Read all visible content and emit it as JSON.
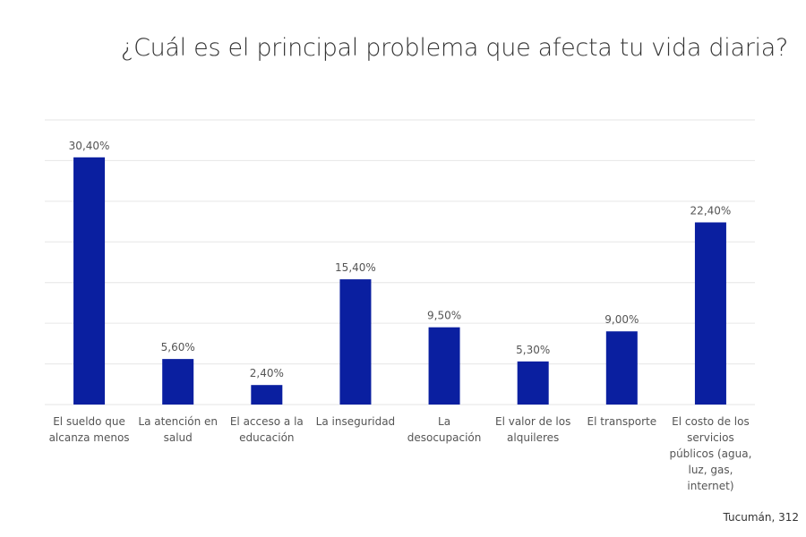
{
  "chart_data": {
    "type": "bar",
    "title": "¿Cuál es el principal problema que afecta tu vida diaria?",
    "categories": [
      "El sueldo que alcanza menos",
      "La atención en salud",
      "El acceso a la educación",
      "La inseguridad",
      "La desocupación",
      "El valor de los alquileres",
      "El transporte",
      "El costo de los servicios públicos (agua, luz, gas, internet)"
    ],
    "values": [
      30.4,
      5.6,
      2.4,
      15.4,
      9.5,
      5.3,
      9.0,
      22.4
    ],
    "data_labels": [
      "30,40%",
      "5,60%",
      "2,40%",
      "15,40%",
      "9,50%",
      "5,30%",
      "9,00%",
      "22,40%"
    ],
    "xlabel": "",
    "ylabel": "",
    "ylim": [
      0,
      35
    ],
    "grid": true,
    "y_tick_labels_shown": false,
    "colors": {
      "bar": "#0a1fa0",
      "grid": "#e6e6e6"
    }
  },
  "source": "Tucumán, 312"
}
